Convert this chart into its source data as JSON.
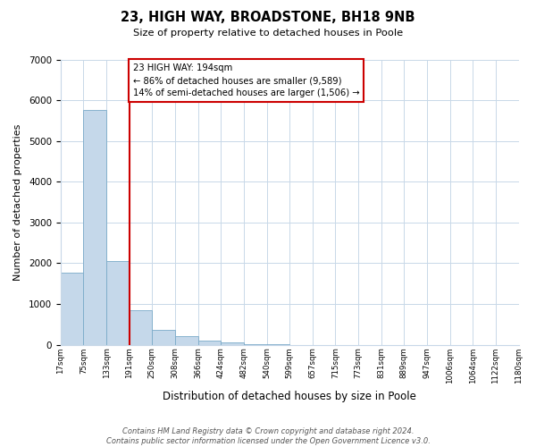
{
  "title": "23, HIGH WAY, BROADSTONE, BH18 9NB",
  "subtitle": "Size of property relative to detached houses in Poole",
  "xlabel": "Distribution of detached houses by size in Poole",
  "ylabel": "Number of detached properties",
  "bar_color": "#c5d8ea",
  "bar_edge_color": "#7aaac8",
  "grid_color": "#c8d8e8",
  "background_color": "#ffffff",
  "bin_labels": [
    "17sqm",
    "75sqm",
    "133sqm",
    "191sqm",
    "250sqm",
    "308sqm",
    "366sqm",
    "424sqm",
    "482sqm",
    "540sqm",
    "599sqm",
    "657sqm",
    "715sqm",
    "773sqm",
    "831sqm",
    "889sqm",
    "947sqm",
    "1006sqm",
    "1064sqm",
    "1122sqm",
    "1180sqm"
  ],
  "bar_values": [
    1775,
    5750,
    2050,
    840,
    370,
    215,
    100,
    50,
    15,
    5,
    0,
    0,
    0,
    0,
    0,
    0,
    0,
    0,
    0,
    0
  ],
  "ylim": [
    0,
    7000
  ],
  "yticks": [
    0,
    1000,
    2000,
    3000,
    4000,
    5000,
    6000,
    7000
  ],
  "property_line_color": "#cc0000",
  "property_line_bin_edge": 3,
  "annotation_line1": "23 HIGH WAY: 194sqm",
  "annotation_line2": "← 86% of detached houses are smaller (9,589)",
  "annotation_line3": "14% of semi-detached houses are larger (1,506) →",
  "annotation_box_color": "#ffffff",
  "annotation_box_edge_color": "#cc0000",
  "footer_text": "Contains HM Land Registry data © Crown copyright and database right 2024.\nContains public sector information licensed under the Open Government Licence v3.0.",
  "figsize": [
    6.0,
    5.0
  ],
  "dpi": 100
}
